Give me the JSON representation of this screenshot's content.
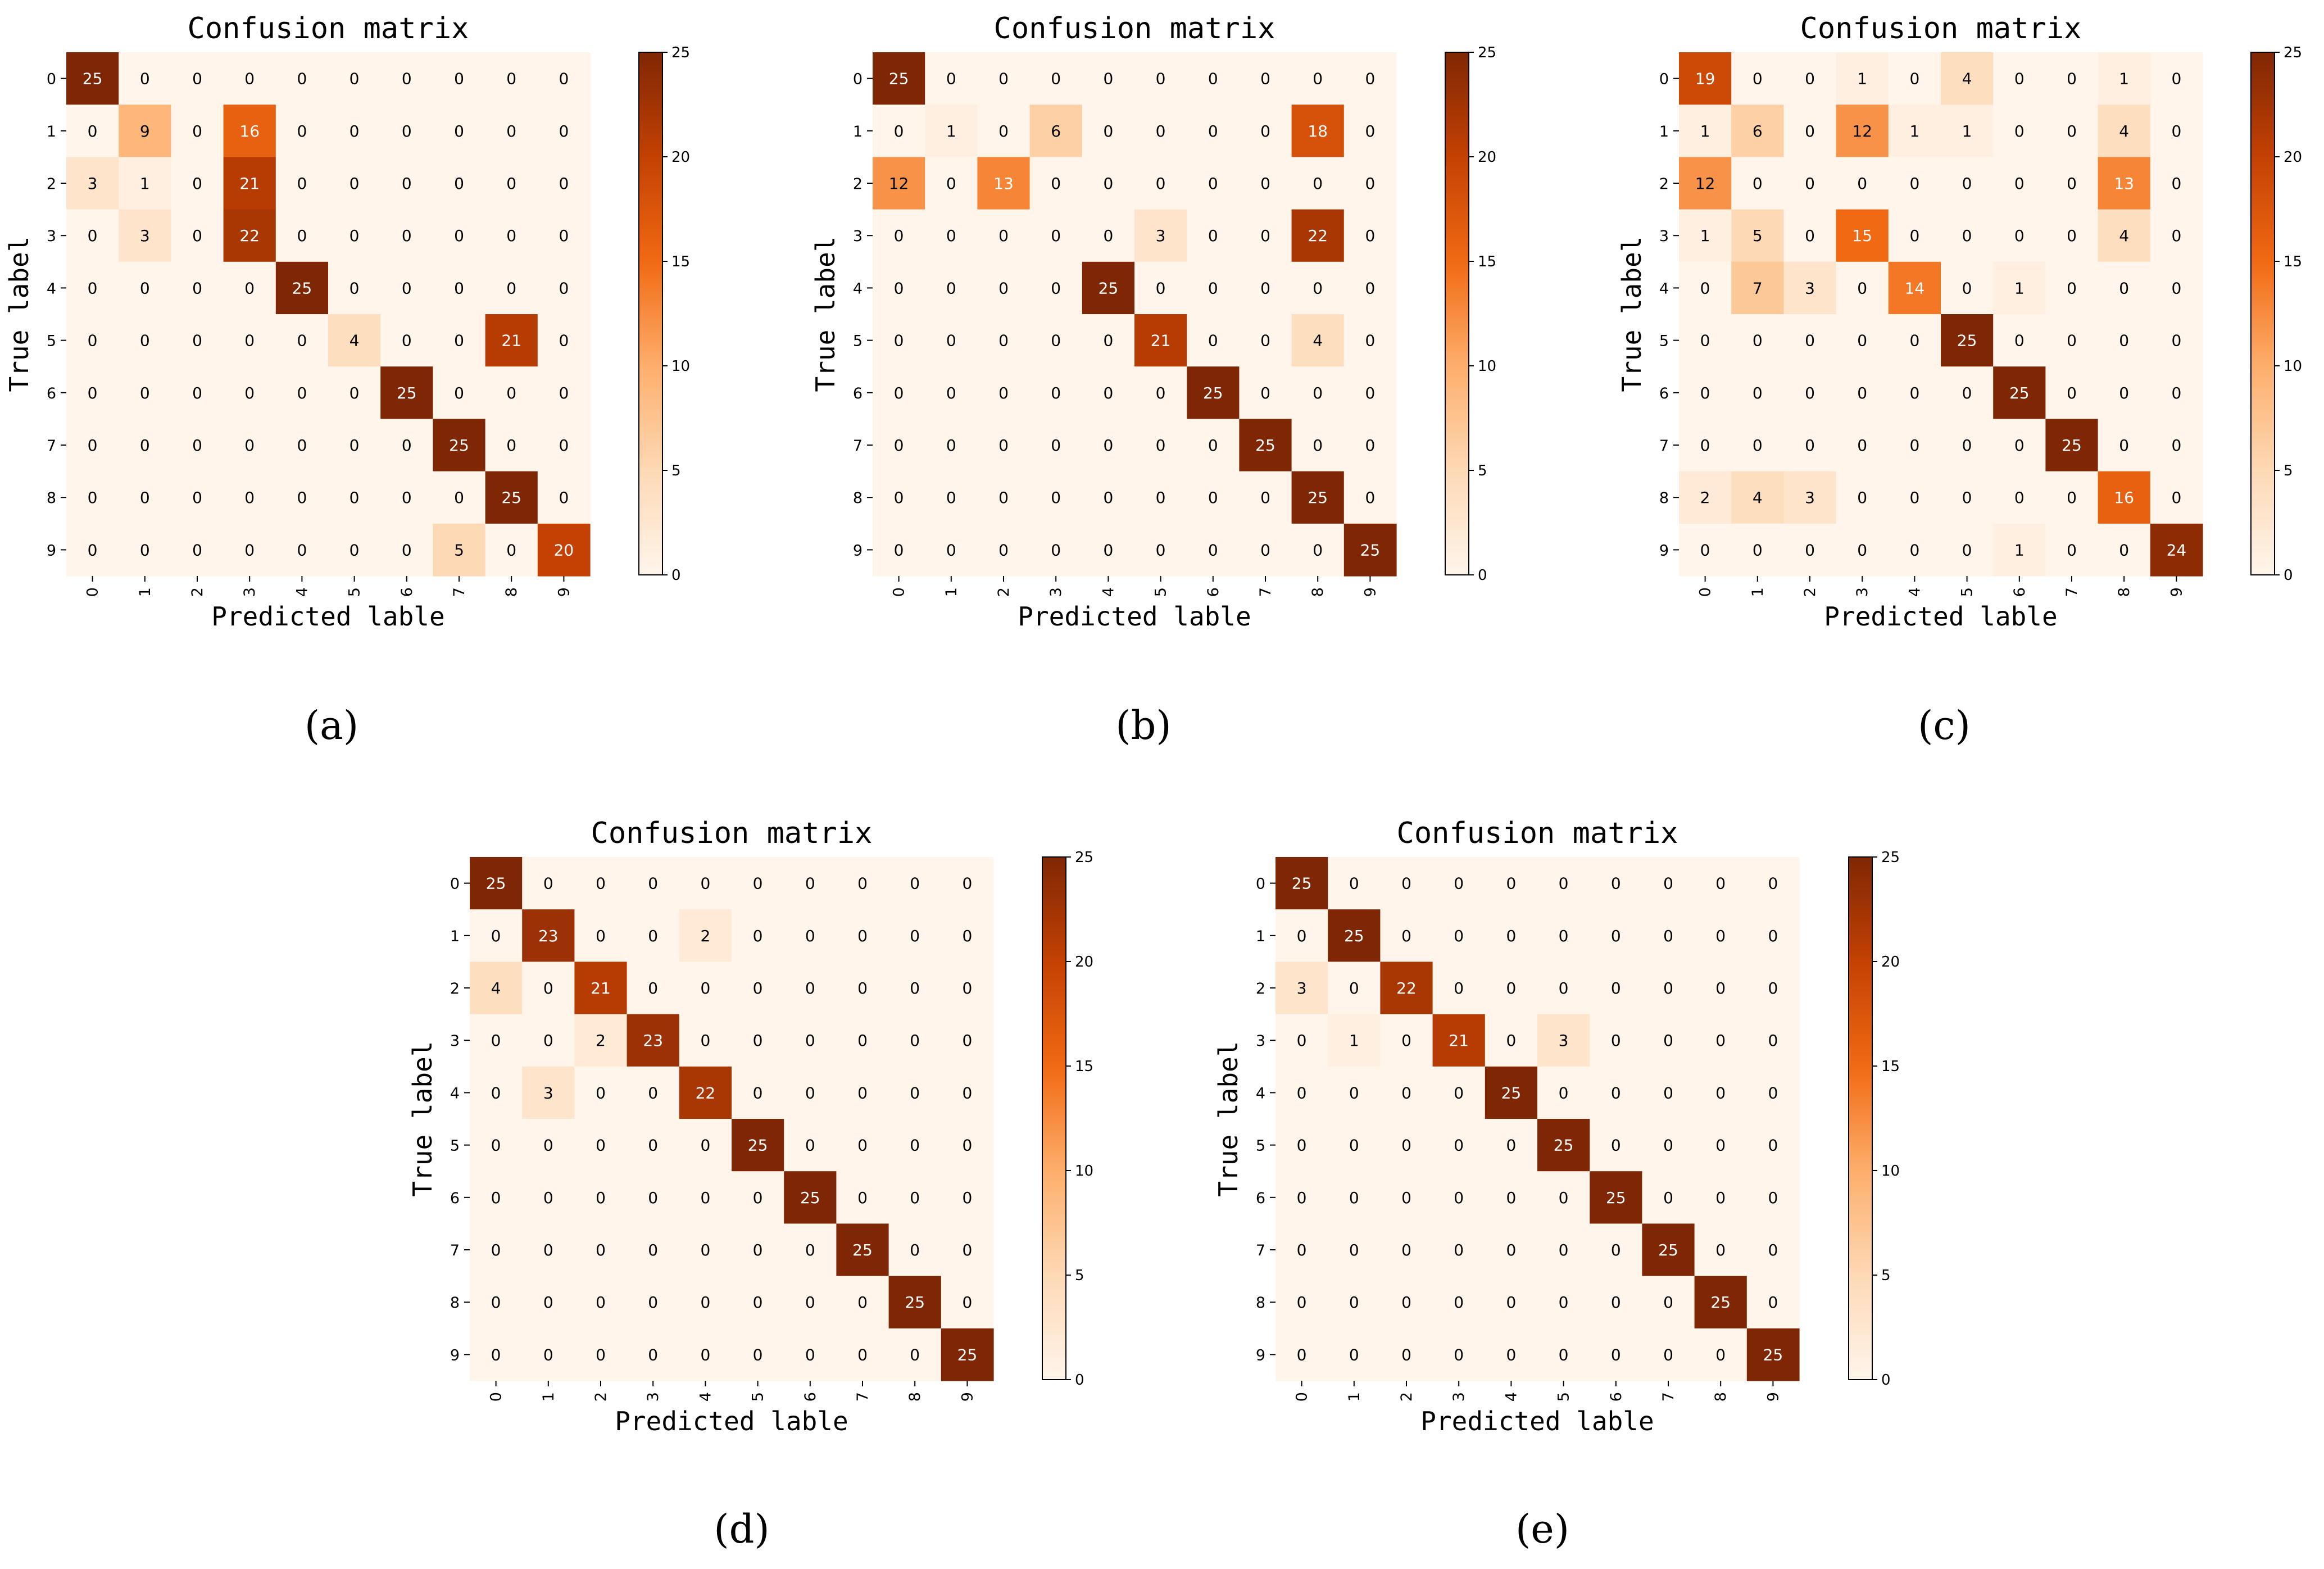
{
  "chart_data": [
    {
      "type": "heatmap",
      "caption": "(a)",
      "title": "Confusion matrix",
      "xlabel": "Predicted lable",
      "ylabel": "True label",
      "x_ticks": [
        "0",
        "1",
        "2",
        "3",
        "4",
        "5",
        "6",
        "7",
        "8",
        "9"
      ],
      "y_ticks": [
        "0",
        "1",
        "2",
        "3",
        "4",
        "5",
        "6",
        "7",
        "8",
        "9"
      ],
      "colorbar": {
        "min": 0,
        "max": 25,
        "ticks": [
          "0",
          "5",
          "10",
          "15",
          "20",
          "25"
        ]
      },
      "matrix": [
        [
          25,
          0,
          0,
          0,
          0,
          0,
          0,
          0,
          0,
          0
        ],
        [
          0,
          9,
          0,
          16,
          0,
          0,
          0,
          0,
          0,
          0
        ],
        [
          3,
          1,
          0,
          21,
          0,
          0,
          0,
          0,
          0,
          0
        ],
        [
          0,
          3,
          0,
          22,
          0,
          0,
          0,
          0,
          0,
          0
        ],
        [
          0,
          0,
          0,
          0,
          25,
          0,
          0,
          0,
          0,
          0
        ],
        [
          0,
          0,
          0,
          0,
          0,
          4,
          0,
          0,
          21,
          0
        ],
        [
          0,
          0,
          0,
          0,
          0,
          0,
          25,
          0,
          0,
          0
        ],
        [
          0,
          0,
          0,
          0,
          0,
          0,
          0,
          25,
          0,
          0
        ],
        [
          0,
          0,
          0,
          0,
          0,
          0,
          0,
          0,
          25,
          0
        ],
        [
          0,
          0,
          0,
          0,
          0,
          0,
          0,
          5,
          0,
          20
        ]
      ]
    },
    {
      "type": "heatmap",
      "caption": "(b)",
      "title": "Confusion matrix",
      "xlabel": "Predicted lable",
      "ylabel": "True label",
      "x_ticks": [
        "0",
        "1",
        "2",
        "3",
        "4",
        "5",
        "6",
        "7",
        "8",
        "9"
      ],
      "y_ticks": [
        "0",
        "1",
        "2",
        "3",
        "4",
        "5",
        "6",
        "7",
        "8",
        "9"
      ],
      "colorbar": {
        "min": 0,
        "max": 25,
        "ticks": [
          "0",
          "5",
          "10",
          "15",
          "20",
          "25"
        ]
      },
      "matrix": [
        [
          25,
          0,
          0,
          0,
          0,
          0,
          0,
          0,
          0,
          0
        ],
        [
          0,
          1,
          0,
          6,
          0,
          0,
          0,
          0,
          18,
          0
        ],
        [
          12,
          0,
          13,
          0,
          0,
          0,
          0,
          0,
          0,
          0
        ],
        [
          0,
          0,
          0,
          0,
          0,
          3,
          0,
          0,
          22,
          0
        ],
        [
          0,
          0,
          0,
          0,
          25,
          0,
          0,
          0,
          0,
          0
        ],
        [
          0,
          0,
          0,
          0,
          0,
          21,
          0,
          0,
          4,
          0
        ],
        [
          0,
          0,
          0,
          0,
          0,
          0,
          25,
          0,
          0,
          0
        ],
        [
          0,
          0,
          0,
          0,
          0,
          0,
          0,
          25,
          0,
          0
        ],
        [
          0,
          0,
          0,
          0,
          0,
          0,
          0,
          0,
          25,
          0
        ],
        [
          0,
          0,
          0,
          0,
          0,
          0,
          0,
          0,
          0,
          25
        ]
      ]
    },
    {
      "type": "heatmap",
      "caption": "(c)",
      "title": "Confusion matrix",
      "xlabel": "Predicted lable",
      "ylabel": "True label",
      "x_ticks": [
        "0",
        "1",
        "2",
        "3",
        "4",
        "5",
        "6",
        "7",
        "8",
        "9"
      ],
      "y_ticks": [
        "0",
        "1",
        "2",
        "3",
        "4",
        "5",
        "6",
        "7",
        "8",
        "9"
      ],
      "colorbar": {
        "min": 0,
        "max": 25,
        "ticks": [
          "0",
          "5",
          "10",
          "15",
          "20",
          "25"
        ]
      },
      "matrix": [
        [
          19,
          0,
          0,
          1,
          0,
          4,
          0,
          0,
          1,
          0
        ],
        [
          1,
          6,
          0,
          12,
          1,
          1,
          0,
          0,
          4,
          0
        ],
        [
          12,
          0,
          0,
          0,
          0,
          0,
          0,
          0,
          13,
          0
        ],
        [
          1,
          5,
          0,
          15,
          0,
          0,
          0,
          0,
          4,
          0
        ],
        [
          0,
          7,
          3,
          0,
          14,
          0,
          1,
          0,
          0,
          0
        ],
        [
          0,
          0,
          0,
          0,
          0,
          25,
          0,
          0,
          0,
          0
        ],
        [
          0,
          0,
          0,
          0,
          0,
          0,
          25,
          0,
          0,
          0
        ],
        [
          0,
          0,
          0,
          0,
          0,
          0,
          0,
          25,
          0,
          0
        ],
        [
          2,
          4,
          3,
          0,
          0,
          0,
          0,
          0,
          16,
          0
        ],
        [
          0,
          0,
          0,
          0,
          0,
          0,
          1,
          0,
          0,
          24
        ]
      ]
    },
    {
      "type": "heatmap",
      "caption": "(d)",
      "title": "Confusion matrix",
      "xlabel": "Predicted lable",
      "ylabel": "True label",
      "x_ticks": [
        "0",
        "1",
        "2",
        "3",
        "4",
        "5",
        "6",
        "7",
        "8",
        "9"
      ],
      "y_ticks": [
        "0",
        "1",
        "2",
        "3",
        "4",
        "5",
        "6",
        "7",
        "8",
        "9"
      ],
      "colorbar": {
        "min": 0,
        "max": 25,
        "ticks": [
          "0",
          "5",
          "10",
          "15",
          "20",
          "25"
        ]
      },
      "matrix": [
        [
          25,
          0,
          0,
          0,
          0,
          0,
          0,
          0,
          0,
          0
        ],
        [
          0,
          23,
          0,
          0,
          2,
          0,
          0,
          0,
          0,
          0
        ],
        [
          4,
          0,
          21,
          0,
          0,
          0,
          0,
          0,
          0,
          0
        ],
        [
          0,
          0,
          2,
          23,
          0,
          0,
          0,
          0,
          0,
          0
        ],
        [
          0,
          3,
          0,
          0,
          22,
          0,
          0,
          0,
          0,
          0
        ],
        [
          0,
          0,
          0,
          0,
          0,
          25,
          0,
          0,
          0,
          0
        ],
        [
          0,
          0,
          0,
          0,
          0,
          0,
          25,
          0,
          0,
          0
        ],
        [
          0,
          0,
          0,
          0,
          0,
          0,
          0,
          25,
          0,
          0
        ],
        [
          0,
          0,
          0,
          0,
          0,
          0,
          0,
          0,
          25,
          0
        ],
        [
          0,
          0,
          0,
          0,
          0,
          0,
          0,
          0,
          0,
          25
        ]
      ]
    },
    {
      "type": "heatmap",
      "caption": "(e)",
      "title": "Confusion matrix",
      "xlabel": "Predicted lable",
      "ylabel": "True label",
      "x_ticks": [
        "0",
        "1",
        "2",
        "3",
        "4",
        "5",
        "6",
        "7",
        "8",
        "9"
      ],
      "y_ticks": [
        "0",
        "1",
        "2",
        "3",
        "4",
        "5",
        "6",
        "7",
        "8",
        "9"
      ],
      "colorbar": {
        "min": 0,
        "max": 25,
        "ticks": [
          "0",
          "5",
          "10",
          "15",
          "20",
          "25"
        ]
      },
      "matrix": [
        [
          25,
          0,
          0,
          0,
          0,
          0,
          0,
          0,
          0,
          0
        ],
        [
          0,
          25,
          0,
          0,
          0,
          0,
          0,
          0,
          0,
          0
        ],
        [
          3,
          0,
          22,
          0,
          0,
          0,
          0,
          0,
          0,
          0
        ],
        [
          0,
          1,
          0,
          21,
          0,
          3,
          0,
          0,
          0,
          0
        ],
        [
          0,
          0,
          0,
          0,
          25,
          0,
          0,
          0,
          0,
          0
        ],
        [
          0,
          0,
          0,
          0,
          0,
          25,
          0,
          0,
          0,
          0
        ],
        [
          0,
          0,
          0,
          0,
          0,
          0,
          25,
          0,
          0,
          0
        ],
        [
          0,
          0,
          0,
          0,
          0,
          0,
          0,
          25,
          0,
          0
        ],
        [
          0,
          0,
          0,
          0,
          0,
          0,
          0,
          0,
          25,
          0
        ],
        [
          0,
          0,
          0,
          0,
          0,
          0,
          0,
          0,
          0,
          25
        ]
      ]
    }
  ]
}
